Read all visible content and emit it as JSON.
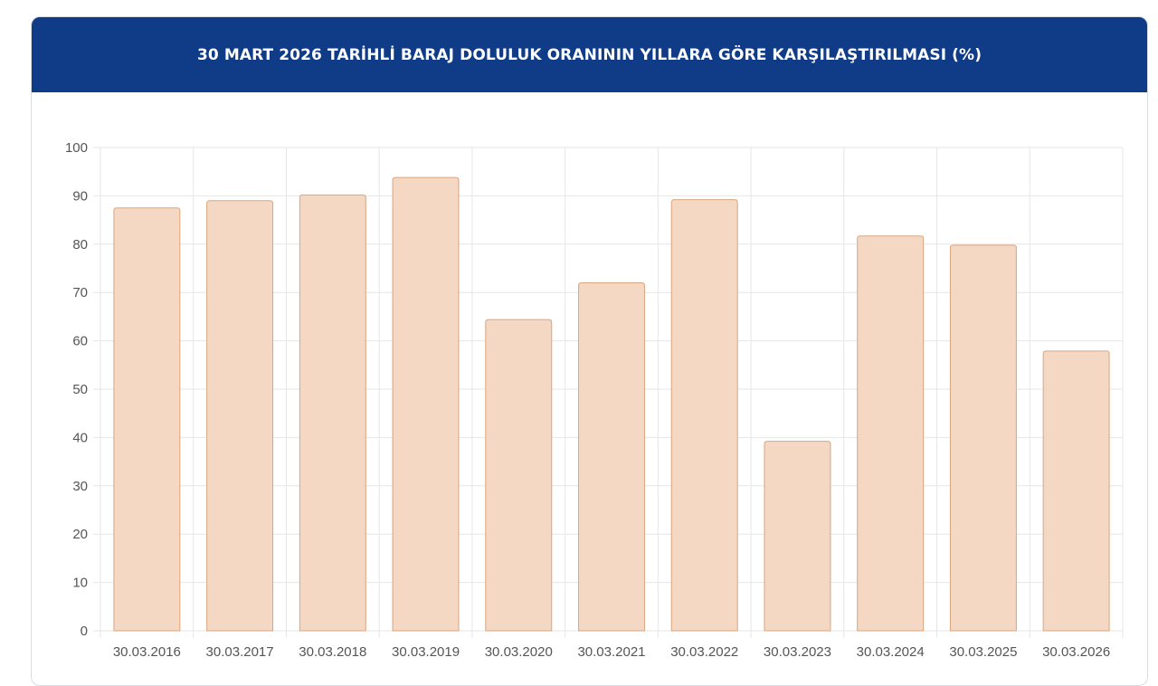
{
  "header": {
    "title": "30 MART 2026 TARİHLİ BARAJ DOLULUK ORANININ YILLARA GÖRE KARŞILAŞTIRILMASI (%)"
  },
  "colors": {
    "header_bg": "#0f3b87",
    "bar_fill": "#f4d8c3",
    "bar_stroke": "#d9a57f",
    "grid": "#e6e6e6",
    "tick_text": "#555555"
  },
  "chart_data": {
    "type": "bar",
    "title": "30 MART 2026 TARİHLİ BARAJ DOLULUK ORANININ YILLARA GÖRE KARŞILAŞTIRILMASI (%)",
    "categories": [
      "30.03.2016",
      "30.03.2017",
      "30.03.2018",
      "30.03.2019",
      "30.03.2020",
      "30.03.2021",
      "30.03.2022",
      "30.03.2023",
      "30.03.2024",
      "30.03.2025",
      "30.03.2026"
    ],
    "values": [
      87.5,
      89,
      90.2,
      93.8,
      64.4,
      72,
      89.2,
      39.2,
      81.7,
      79.8,
      57.9
    ],
    "ylim": [
      0,
      100
    ],
    "yticks": [
      "0",
      "10",
      "20",
      "30",
      "40",
      "50",
      "60",
      "70",
      "80",
      "90",
      "100"
    ],
    "xlabel": "",
    "ylabel": "",
    "grid": true,
    "legend": "none"
  }
}
